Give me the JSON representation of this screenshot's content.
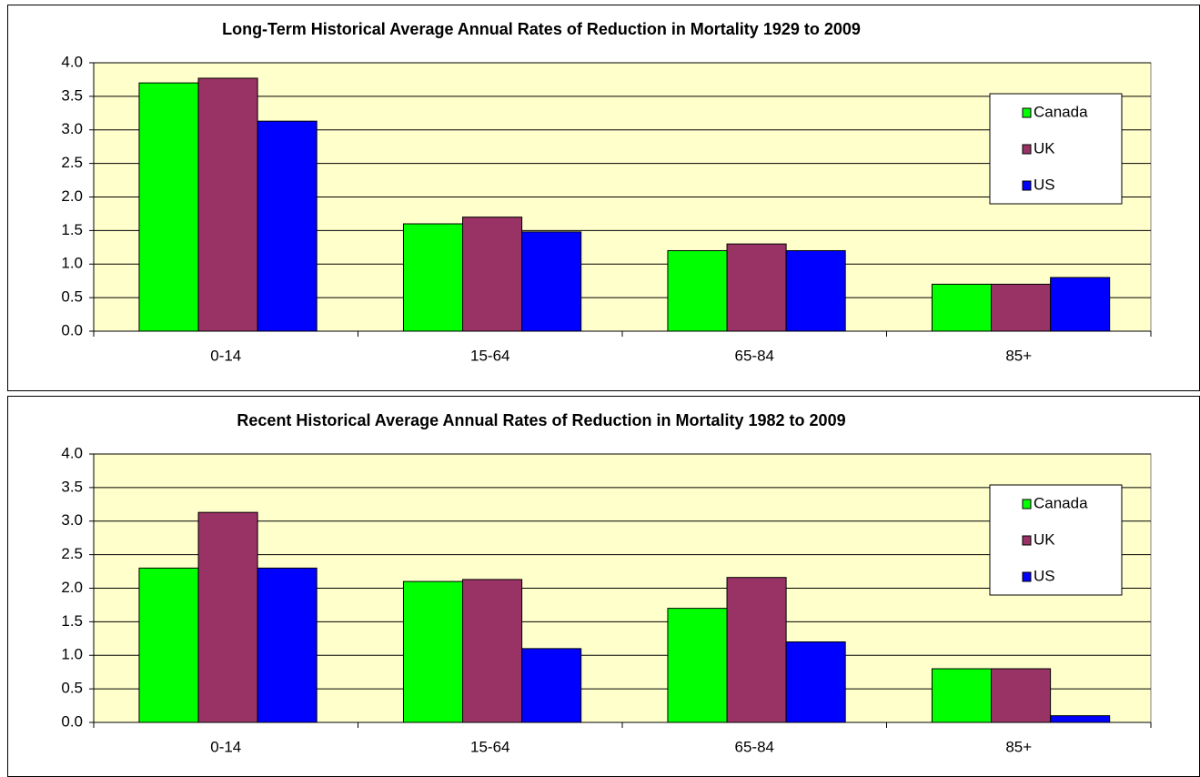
{
  "chart_data": [
    {
      "type": "bar",
      "title": "Long-Term Historical  Average  Annual Rates of Reduction in Mortality  1929 to 2009",
      "categories": [
        "0-14",
        "15-64",
        "65-84",
        "85+"
      ],
      "series": [
        {
          "name": "Canada",
          "color": "#00ff00",
          "values": [
            3.7,
            1.6,
            1.2,
            0.7
          ]
        },
        {
          "name": "UK",
          "color": "#993366",
          "values": [
            3.77,
            1.7,
            1.3,
            0.7
          ]
        },
        {
          "name": "US",
          "color": "#0000ff",
          "values": [
            3.13,
            1.48,
            1.2,
            0.8
          ]
        }
      ],
      "ylim": [
        0,
        4
      ],
      "yticks": [
        {
          "value": 0,
          "label": "0.0"
        },
        0.5,
        {
          "value": 1,
          "label": "1.0"
        },
        1.5,
        {
          "value": 2,
          "label": "2.0"
        },
        2.5,
        {
          "value": 3,
          "label": "3.0"
        },
        3.5,
        {
          "value": 4,
          "label": "4.0"
        }
      ],
      "grid": true,
      "legend": "right"
    },
    {
      "type": "bar",
      "title": "Recent Historical  Average  Annual Rates of Reduction in Mortality  1982 to 2009",
      "categories": [
        "0-14",
        "15-64",
        "65-84",
        "85+"
      ],
      "series": [
        {
          "name": "Canada",
          "color": "#00ff00",
          "values": [
            2.3,
            2.1,
            1.7,
            0.8
          ]
        },
        {
          "name": "UK",
          "color": "#993366",
          "values": [
            3.13,
            2.13,
            2.16,
            0.8
          ]
        },
        {
          "name": "US",
          "color": "#0000ff",
          "values": [
            2.3,
            1.1,
            1.2,
            0.1
          ]
        }
      ],
      "ylim": [
        0,
        4
      ],
      "yticks": [
        {
          "value": 0,
          "label": "0.0"
        },
        0.5,
        {
          "value": 1,
          "label": "1.0"
        },
        1.5,
        {
          "value": 2,
          "label": "2.0"
        },
        2.5,
        {
          "value": 3,
          "label": "3.0"
        },
        3.5,
        {
          "value": 4,
          "label": "4.0"
        }
      ],
      "grid": true,
      "legend": "right"
    }
  ]
}
